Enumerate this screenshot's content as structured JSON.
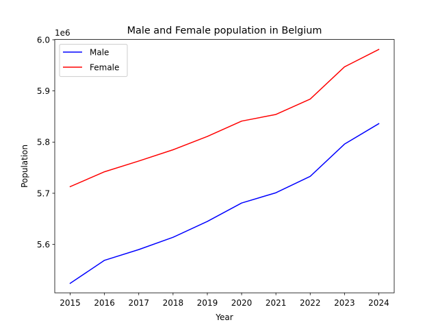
{
  "chart_data": {
    "type": "line",
    "title": "Male and Female population in Belgium",
    "xlabel": "Year",
    "ylabel": "Population",
    "offset_label": "1e6",
    "x": [
      2015,
      2016,
      2017,
      2018,
      2019,
      2020,
      2021,
      2022,
      2023,
      2024
    ],
    "xlim": [
      2014.55,
      2024.45
    ],
    "ylim": [
      5.5055,
      6.0005
    ],
    "yticks": [
      5.6,
      5.7,
      5.8,
      5.9,
      6.0
    ],
    "ytick_labels": [
      "5.6",
      "5.7",
      "5.8",
      "5.9",
      "6.0"
    ],
    "grid": false,
    "legend": "top-left",
    "series": [
      {
        "name": "Male",
        "color": "#0000ff",
        "values": [
          5.524,
          5.569,
          5.59,
          5.614,
          5.645,
          5.681,
          5.701,
          5.733,
          5.796,
          5.836
        ]
      },
      {
        "name": "Female",
        "color": "#ff0000",
        "values": [
          5.713,
          5.742,
          5.763,
          5.785,
          5.811,
          5.841,
          5.854,
          5.884,
          5.947,
          5.981
        ]
      }
    ]
  }
}
